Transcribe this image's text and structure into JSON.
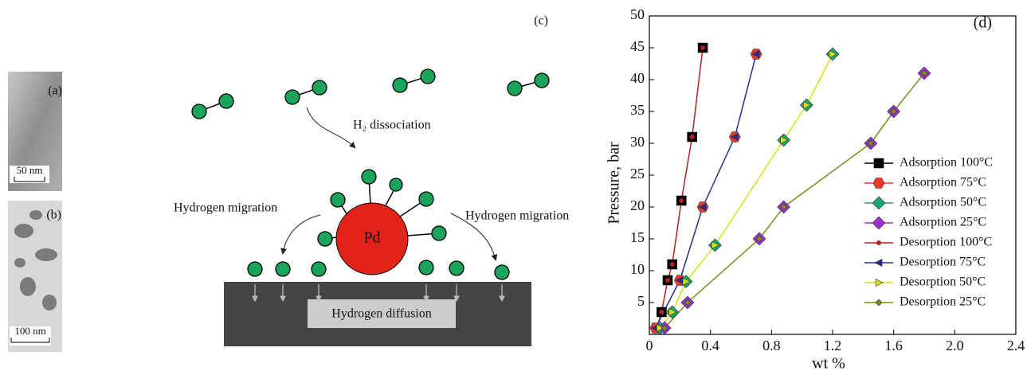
{
  "panels": {
    "a": {
      "label": "(a)",
      "scale": "50 nm"
    },
    "b": {
      "label": "(b)",
      "scale": "100 nm"
    },
    "c": {
      "label": "(c)",
      "dissociation": "H₂ dissociation",
      "migration_left": "Hydrogen migration",
      "migration_right": "Hydrogen migration",
      "particle": "Pd",
      "diffusion": "Hydrogen diffusion"
    }
  },
  "chart_data": {
    "type": "line",
    "panel_label": "(d)",
    "x_label": "wt %",
    "y_label": "Pressure, bar",
    "xlim": [
      0,
      2.4
    ],
    "xticks": [
      0,
      0.4,
      0.8,
      1.2,
      1.6,
      {
        "value": 2,
        "label": "2.0"
      },
      2.4
    ],
    "ylim": [
      0,
      50
    ],
    "yticks": [
      5,
      10,
      15,
      20,
      25,
      30,
      35,
      40,
      45,
      50
    ],
    "legend": "right",
    "series": [
      {
        "name": "Adsorption 100°C",
        "color": "#000000",
        "marker": "square",
        "x": [
          0.05,
          0.08,
          0.12,
          0.15,
          0.21,
          0.28,
          0.35
        ],
        "values": [
          1,
          3.5,
          8.5,
          11,
          21,
          31,
          45
        ]
      },
      {
        "name": "Adsorption 75°C",
        "color": "#e8392b",
        "marker": "hexagon",
        "x": [
          0.04,
          0.2,
          0.35,
          0.56,
          0.7
        ],
        "values": [
          1,
          8.5,
          20,
          31,
          44
        ]
      },
      {
        "name": "Adsorption 50°C",
        "color": "#17a86e",
        "marker": "diamond",
        "x": [
          0.07,
          0.15,
          0.24,
          0.43,
          0.88,
          1.03,
          1.2
        ],
        "values": [
          1,
          3.5,
          8.3,
          14,
          30.5,
          36,
          44
        ]
      },
      {
        "name": "Adsorption 25°C",
        "color": "#9b30d0",
        "marker": "diamond",
        "x": [
          0.1,
          0.25,
          0.72,
          0.88,
          1.45,
          1.6,
          1.8
        ],
        "values": [
          1,
          5,
          15,
          20,
          30,
          35,
          41
        ]
      },
      {
        "name": "Desorption 100°C",
        "color": "#b22222",
        "marker": "dot",
        "x": [
          0.05,
          0.08,
          0.12,
          0.15,
          0.21,
          0.28,
          0.35
        ],
        "values": [
          1,
          3.5,
          8.5,
          11,
          21,
          31,
          45
        ]
      },
      {
        "name": "Desorption 75°C",
        "color": "#2b2b8f",
        "marker": "triangle-left",
        "x": [
          0.04,
          0.2,
          0.35,
          0.56,
          0.7
        ],
        "values": [
          1,
          8.5,
          20,
          31,
          44
        ]
      },
      {
        "name": "Desorption 50°C",
        "color": "#d4e01a",
        "marker": "triangle-right",
        "x": [
          0.07,
          0.15,
          0.24,
          0.43,
          0.88,
          1.03,
          1.2
        ],
        "values": [
          1,
          3.5,
          8.3,
          14,
          30.5,
          36,
          44
        ]
      },
      {
        "name": "Desorption 25°C",
        "color": "#7a8c1e",
        "marker": "small-diamond",
        "x": [
          0.1,
          0.25,
          0.72,
          0.88,
          1.45,
          1.6,
          1.8
        ],
        "values": [
          1,
          5,
          15,
          20,
          30,
          35,
          41
        ]
      }
    ]
  }
}
